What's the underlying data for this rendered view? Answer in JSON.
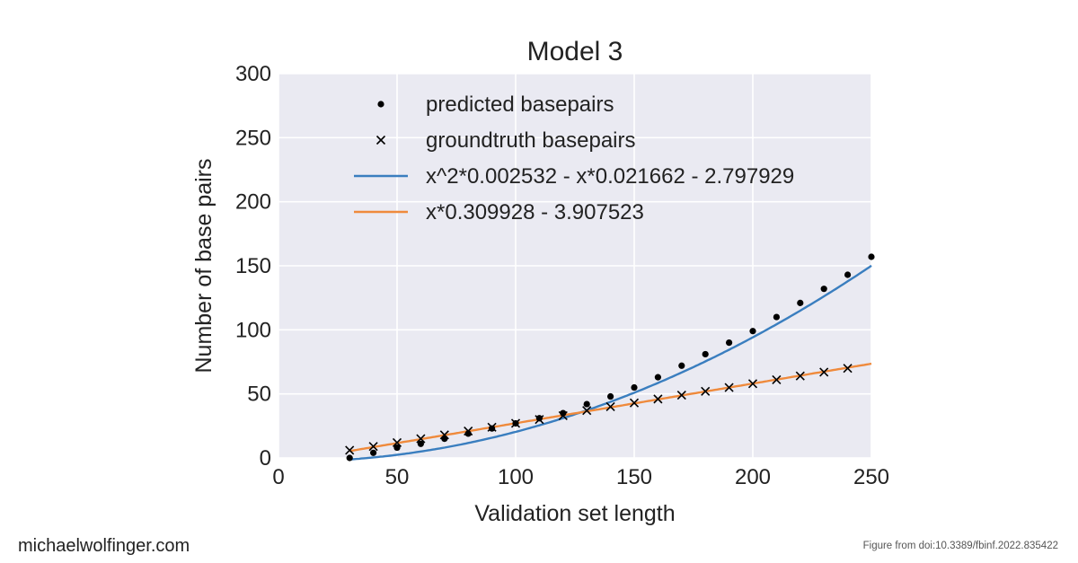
{
  "chart_data": {
    "type": "line",
    "title": "Model 3",
    "xlabel": "Validation set length",
    "ylabel": "Number of base pairs",
    "xlim": [
      0,
      250
    ],
    "ylim": [
      0,
      300
    ],
    "x_ticks": [
      0,
      50,
      100,
      150,
      200,
      250
    ],
    "y_ticks": [
      0,
      50,
      100,
      150,
      200,
      250,
      300
    ],
    "grid": true,
    "legend_position": "top-center",
    "series": [
      {
        "name": "predicted basepairs",
        "kind": "scatter",
        "marker": "dot",
        "color": "#000000",
        "x": [
          30,
          40,
          50,
          60,
          70,
          80,
          90,
          100,
          110,
          120,
          130,
          140,
          150,
          160,
          170,
          180,
          190,
          200,
          210,
          220,
          230,
          240,
          250
        ],
        "y": [
          0,
          4,
          8,
          11,
          15,
          19,
          23,
          27,
          31,
          35,
          42,
          48,
          55,
          63,
          72,
          81,
          90,
          99,
          110,
          121,
          132,
          143,
          157
        ]
      },
      {
        "name": "groundtruth basepairs",
        "kind": "scatter",
        "marker": "x",
        "color": "#000000",
        "x": [
          30,
          40,
          50,
          60,
          70,
          80,
          90,
          100,
          110,
          120,
          130,
          140,
          150,
          160,
          170,
          180,
          190,
          200,
          210,
          220,
          230,
          240
        ],
        "y": [
          6,
          9,
          12,
          15,
          18,
          21,
          24,
          27,
          30,
          33,
          37,
          40,
          43,
          46,
          49,
          52,
          55,
          58,
          61,
          64,
          67,
          70
        ]
      },
      {
        "name": "x^2*0.002532 - x*0.021662 - 2.797929",
        "kind": "line",
        "color": "#3a7ebf",
        "coefficients": [
          0.002532,
          -0.021662,
          -2.797929
        ],
        "x_range": [
          30,
          250
        ]
      },
      {
        "name": "x*0.309928 - 3.907523",
        "kind": "line",
        "color": "#ef8a3c",
        "coefficients": [
          0,
          0.309928,
          -3.907523
        ],
        "x_range": [
          30,
          250
        ]
      }
    ]
  },
  "footer": {
    "left": "michaelwolfinger.com",
    "right": "Figure from doi:10.3389/fbinf.2022.835422"
  }
}
